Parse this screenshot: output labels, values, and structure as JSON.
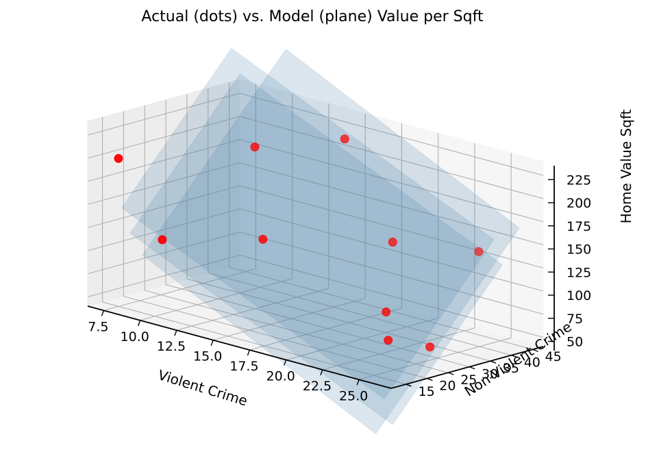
{
  "chart_data": {
    "type": "scatter",
    "projection": "3d",
    "title": "Actual (dots) vs. Model (plane) Value per Sqft",
    "xlabel": "Violent Crime",
    "ylabel": "Non-Violent Crime",
    "zlabel": "Home Value Sqft",
    "x_ticks": [
      "7.5",
      "10.0",
      "12.5",
      "15.0",
      "17.5",
      "20.0",
      "22.5",
      "25.0"
    ],
    "y_ticks": [
      "15",
      "20",
      "25",
      "30",
      "35",
      "40",
      "45"
    ],
    "z_ticks": [
      "50",
      "75",
      "100",
      "125",
      "150",
      "175",
      "200",
      "225"
    ],
    "xlim": [
      6.4,
      27.2
    ],
    "ylim": [
      11.5,
      47.5
    ],
    "zlim": [
      40,
      240
    ],
    "grid": true,
    "points_color": "#ff0000",
    "plane_color": "#4c82ac",
    "points": [
      {
        "x": 7.5,
        "y": 15,
        "z": 200
      },
      {
        "x": 10.5,
        "y": 15,
        "z": 125
      },
      {
        "x": 12.5,
        "y": 30,
        "z": 215
      },
      {
        "x": 17.5,
        "y": 34,
        "z": 240
      },
      {
        "x": 14.5,
        "y": 25,
        "z": 130
      },
      {
        "x": 20.5,
        "y": 35,
        "z": 140
      },
      {
        "x": 23.5,
        "y": 45,
        "z": 130
      },
      {
        "x": 21.5,
        "y": 30,
        "z": 75
      },
      {
        "x": 22.8,
        "y": 26,
        "z": 55
      },
      {
        "x": 24.5,
        "y": 30,
        "z": 50
      }
    ],
    "planes": [
      {
        "corners": [
          [
            8,
            14,
            150
          ],
          [
            26,
            14,
            20
          ],
          [
            26,
            40,
            160
          ],
          [
            8,
            40,
            290
          ]
        ]
      },
      {
        "corners": [
          [
            8,
            16,
            120
          ],
          [
            26,
            16,
            -10
          ],
          [
            26,
            42,
            130
          ],
          [
            8,
            42,
            260
          ]
        ]
      },
      {
        "corners": [
          [
            10,
            12,
            110
          ],
          [
            26,
            12,
            -15
          ],
          [
            26,
            46,
            165
          ],
          [
            10,
            46,
            290
          ]
        ]
      }
    ]
  }
}
